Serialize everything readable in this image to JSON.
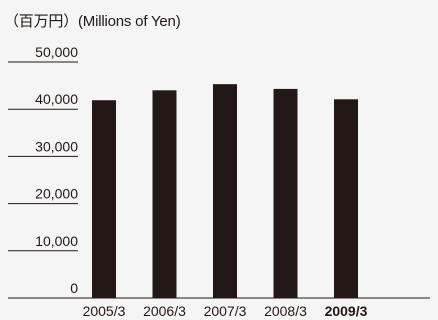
{
  "chart_data": {
    "type": "bar",
    "unit_label": "（百万円）(Millions of Yen)",
    "categories": [
      "2005/3",
      "2006/3",
      "2007/3",
      "2008/3",
      "2009/3"
    ],
    "highlight_category": "2009/3",
    "values": [
      41900,
      44000,
      45300,
      44300,
      42100
    ],
    "ylim": [
      0,
      50000
    ],
    "yticks": [
      {
        "value": 0,
        "label": "0"
      },
      {
        "value": 10000,
        "label": "10,000"
      },
      {
        "value": 20000,
        "label": "20,000"
      },
      {
        "value": 30000,
        "label": "30,000"
      },
      {
        "value": 40000,
        "label": "40,000"
      },
      {
        "value": 50000,
        "label": "50,000"
      }
    ],
    "grid": false,
    "bar_color": "#231815",
    "background": "#f5f5f5"
  }
}
